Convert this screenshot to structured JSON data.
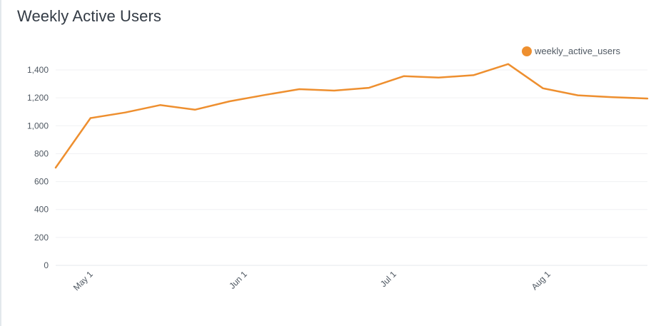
{
  "chart_data": {
    "type": "line",
    "title": "Weekly Active Users",
    "xlabel": "",
    "ylabel": "",
    "ylim": [
      0,
      1400
    ],
    "y_ticks": [
      0,
      200,
      400,
      600,
      800,
      1000,
      1200,
      1400
    ],
    "y_tick_labels": [
      "0",
      "200",
      "400",
      "600",
      "800",
      "1,000",
      "1,200",
      "1,400"
    ],
    "x_ticks": [
      "2023-05-01",
      "2023-06-01",
      "2023-07-01",
      "2023-08-01"
    ],
    "x_tick_labels": [
      "May 1",
      "Jun 1",
      "Jul 1",
      "Aug 1"
    ],
    "grid": true,
    "legend_position": "top-right",
    "series": [
      {
        "name": "weekly_active_users",
        "color": "#ee8f2f",
        "x": [
          "2023-04-24",
          "2023-05-01",
          "2023-05-08",
          "2023-05-15",
          "2023-05-22",
          "2023-05-29",
          "2023-06-05",
          "2023-06-12",
          "2023-06-19",
          "2023-06-26",
          "2023-07-03",
          "2023-07-10",
          "2023-07-17",
          "2023-07-24",
          "2023-07-31",
          "2023-08-07",
          "2023-08-14",
          "2023-08-21"
        ],
        "values": [
          700,
          1055,
          1095,
          1148,
          1115,
          1175,
          1220,
          1262,
          1252,
          1272,
          1355,
          1345,
          1362,
          1442,
          1268,
          1218,
          1205,
          1195
        ]
      }
    ]
  }
}
